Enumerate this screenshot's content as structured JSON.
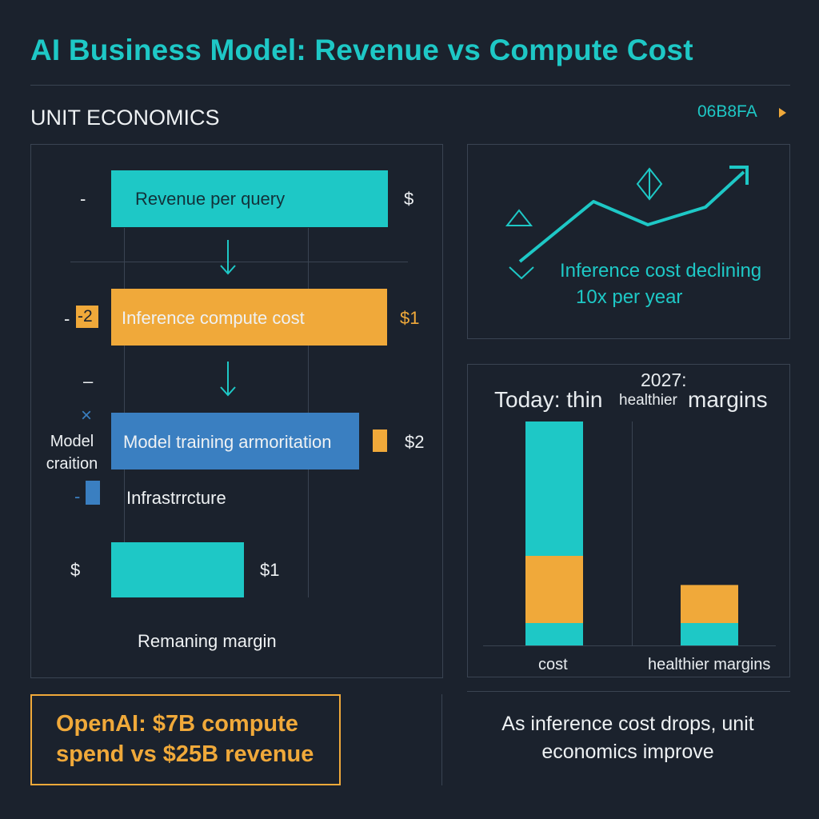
{
  "header": {
    "title": "AI Business Model: Revenue vs Compute Cost",
    "section_label": "UNIT ECONOMICS",
    "hex_label": "06B8FA",
    "hex_arrow_icon": "caret-right-icon"
  },
  "colors": {
    "background": "#1b222d",
    "teal": "#1ec8c6",
    "orange": "#f0a93a",
    "blue": "#3a7fc1",
    "border": "#3a4452",
    "text": "#eef1f3"
  },
  "waterfall": {
    "rows": [
      {
        "label": "Revenue per query",
        "value": "$",
        "left_marker": "-",
        "color": "#1ec8c6"
      },
      {
        "label": "Inference compute cost",
        "value": "$1",
        "left_marker": "-",
        "badge": "-2",
        "color": "#f0a93a"
      },
      {
        "label": "Model training armoritation",
        "value": "$2",
        "left_marker": "–",
        "side_label": "Model craition",
        "cross_icon": "×",
        "color": "#3a7fc1"
      },
      {
        "label": "Infrastrrcture",
        "left_marker": "-",
        "color": "#3a7fc1"
      },
      {
        "label": "Remaning margin",
        "value": "$1",
        "left_marker": "$",
        "color": "#1ec8c6"
      }
    ]
  },
  "trend": {
    "caption_line1": "Inference cost declining",
    "caption_line2": "10x per year",
    "icons": [
      "triangle-up-icon",
      "chevron-down-icon",
      "diamond-icon",
      "arrow-up-right-icon"
    ]
  },
  "chart_data": {
    "type": "bar",
    "title": "Today: thin",
    "title_secondary_top": "2027:",
    "title_secondary_small": "healthier",
    "title_secondary_main": "margins",
    "categories": [
      "cost",
      "healthier margins"
    ],
    "series": [
      {
        "values": [
          1,
          1
        ],
        "color": "#1ec8c6"
      },
      {
        "values": [
          3,
          1.7
        ],
        "color": "#f0a93a"
      },
      {
        "values": [
          6,
          0
        ],
        "color": "#1ec8c6"
      }
    ],
    "ylim": [
      0,
      10
    ],
    "grid": false,
    "legend": "none"
  },
  "callout": {
    "text": "OpenAI: $7B compute spend vs $25B revenue"
  },
  "footer": {
    "note": "As inference cost drops, unit economics improve"
  }
}
